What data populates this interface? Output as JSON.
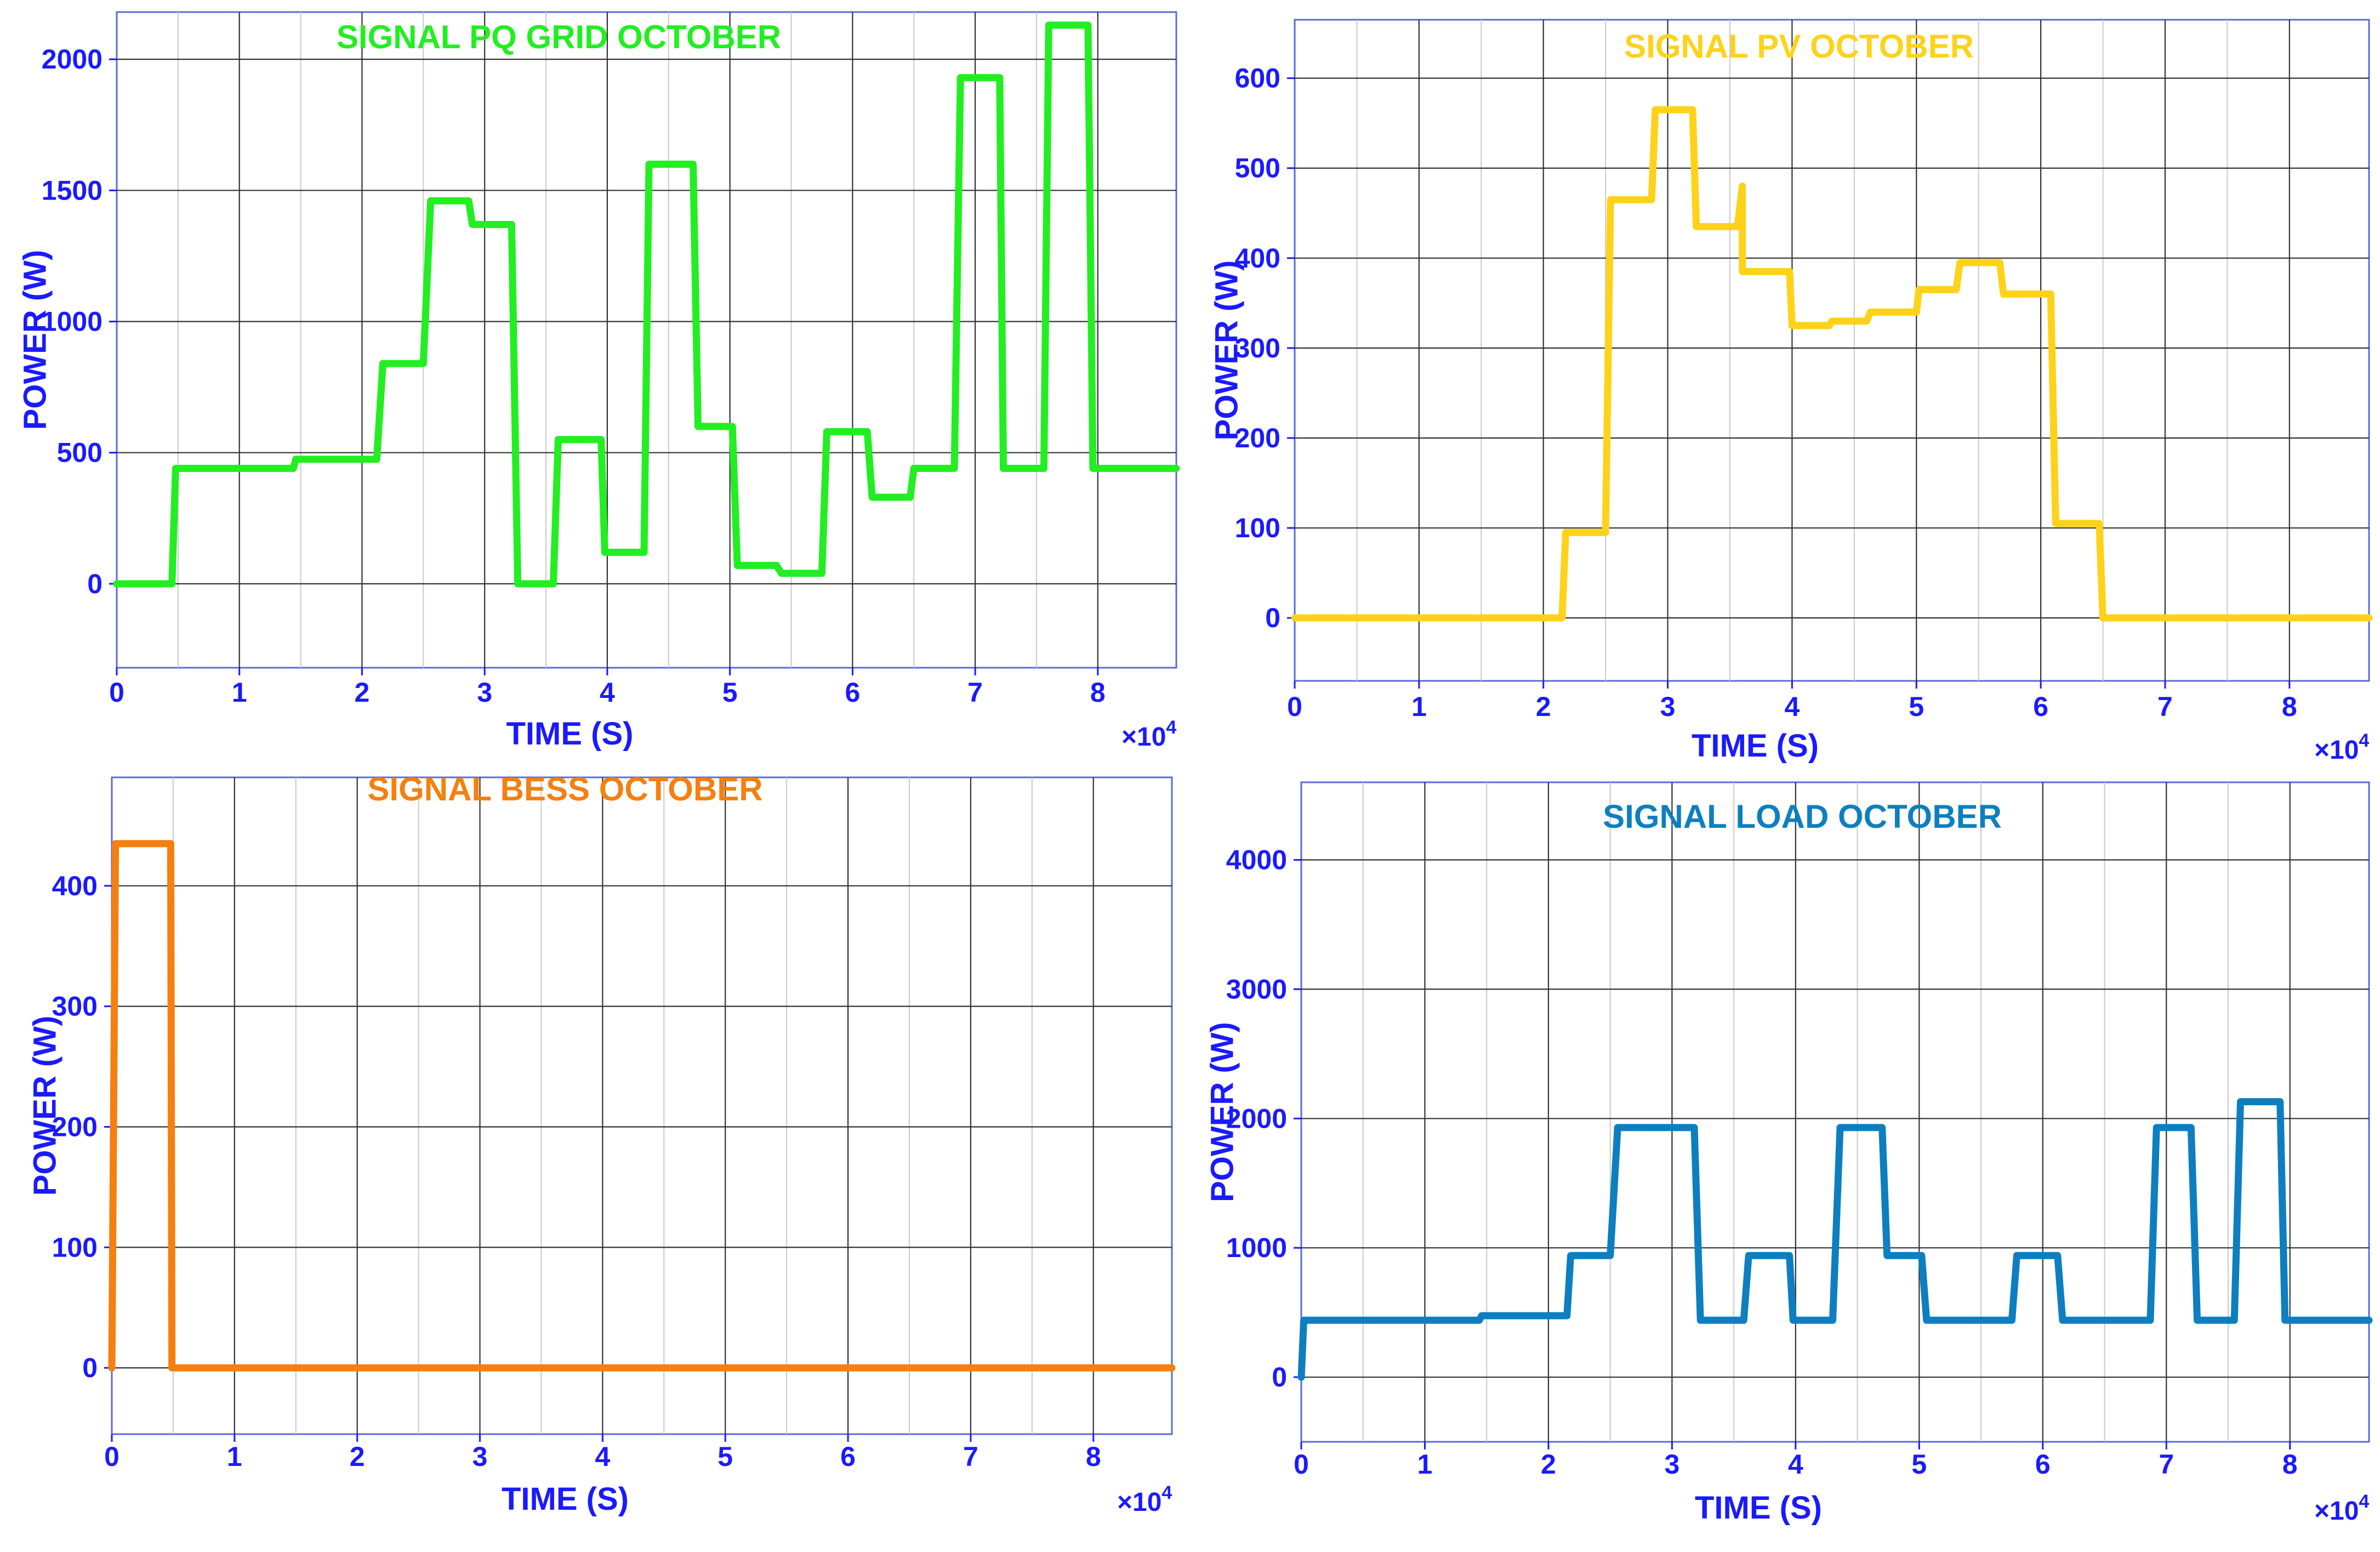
{
  "chart_data": [
    {
      "type": "line",
      "title": "SIGNAL PQ GRID OCTOBER",
      "xlabel": "TIME (S)",
      "ylabel": "POWER (W)",
      "x_exponent_label": "×10",
      "x_exponent_power": "4",
      "xlim": [
        0,
        8.64
      ],
      "ylim": [
        -320,
        2180
      ],
      "xticks": [
        0,
        1,
        2,
        3,
        4,
        5,
        6,
        7,
        8
      ],
      "yticks": [
        0,
        500,
        1000,
        1500,
        2000
      ],
      "x_tick_labels": [
        "0",
        "1",
        "2",
        "3",
        "4",
        "5",
        "6",
        "7",
        "8"
      ],
      "y_tick_labels": [
        "0",
        "500",
        "1000",
        "1500",
        "2000"
      ],
      "color": "#22ee22",
      "series": [
        {
          "x": [
            0,
            0.45,
            0.48,
            1.44,
            1.46,
            2.12,
            2.17,
            2.5,
            2.56,
            2.87,
            2.9,
            3.22,
            3.27,
            3.56,
            3.6,
            3.95,
            3.98,
            4.3,
            4.34,
            4.7,
            4.74,
            5.02,
            5.06,
            5.38,
            5.42,
            5.75,
            5.79,
            6.12,
            6.16,
            6.47,
            6.5,
            6.83,
            6.88,
            7.2,
            7.23,
            7.56,
            7.6,
            7.92,
            7.96,
            8.64
          ],
          "y": [
            0,
            0,
            440,
            440,
            475,
            475,
            840,
            840,
            1460,
            1460,
            1370,
            1370,
            0,
            0,
            550,
            550,
            120,
            120,
            1600,
            1600,
            600,
            600,
            70,
            70,
            40,
            40,
            580,
            580,
            330,
            330,
            440,
            440,
            1930,
            1930,
            440,
            440,
            2130,
            2130,
            440,
            440
          ]
        }
      ]
    },
    {
      "type": "line",
      "title": "SIGNAL PV OCTOBER",
      "xlabel": "TIME (S)",
      "ylabel": "POWER (W)",
      "x_exponent_label": "×10",
      "x_exponent_power": "4",
      "xlim": [
        0,
        8.64
      ],
      "ylim": [
        -70,
        665
      ],
      "xticks": [
        0,
        1,
        2,
        3,
        4,
        5,
        6,
        7,
        8
      ],
      "yticks": [
        0,
        100,
        200,
        300,
        400,
        500,
        600
      ],
      "x_tick_labels": [
        "0",
        "1",
        "2",
        "3",
        "4",
        "5",
        "6",
        "7",
        "8"
      ],
      "y_tick_labels": [
        "0",
        "100",
        "200",
        "300",
        "400",
        "500",
        "600"
      ],
      "color": "#ffd21a",
      "series": [
        {
          "x": [
            0,
            2.15,
            2.18,
            2.5,
            2.54,
            2.87,
            2.9,
            3.2,
            3.23,
            3.56,
            3.6,
            3.6,
            3.64,
            3.98,
            4.0,
            4.3,
            4.32,
            4.6,
            4.63,
            5.0,
            5.02,
            5.32,
            5.35,
            5.67,
            5.7,
            6.08,
            6.12,
            6.47,
            6.5,
            8.64
          ],
          "y": [
            0,
            0,
            95,
            95,
            465,
            465,
            565,
            565,
            435,
            435,
            480,
            385,
            385,
            385,
            325,
            325,
            330,
            330,
            340,
            340,
            365,
            365,
            395,
            395,
            360,
            360,
            105,
            105,
            0,
            0
          ]
        }
      ]
    },
    {
      "type": "line",
      "title": "SIGNAL BESS OCTOBER",
      "xlabel": "TIME (S)",
      "ylabel": "POWER (W)",
      "x_exponent_label": "×10",
      "x_exponent_power": "4",
      "xlim": [
        0,
        8.64
      ],
      "ylim": [
        -55,
        490
      ],
      "xticks": [
        0,
        1,
        2,
        3,
        4,
        5,
        6,
        7,
        8
      ],
      "yticks": [
        0,
        100,
        200,
        300,
        400
      ],
      "x_tick_labels": [
        "0",
        "1",
        "2",
        "3",
        "4",
        "5",
        "6",
        "7",
        "8"
      ],
      "y_tick_labels": [
        "0",
        "100",
        "200",
        "300",
        "400"
      ],
      "color": "#f57f0f",
      "series": [
        {
          "x": [
            0,
            0.03,
            0.48,
            0.49,
            8.64
          ],
          "y": [
            0,
            435,
            435,
            0,
            0
          ]
        }
      ]
    },
    {
      "type": "line",
      "title": "SIGNAL LOAD OCTOBER",
      "xlabel": "TIME (S)",
      "ylabel": "POWER (W)",
      "x_exponent_label": "×10",
      "x_exponent_power": "4",
      "xlim": [
        0,
        8.64
      ],
      "ylim": [
        -500,
        4600
      ],
      "xticks": [
        0,
        1,
        2,
        3,
        4,
        5,
        6,
        7,
        8
      ],
      "yticks": [
        0,
        1000,
        2000,
        3000,
        4000
      ],
      "x_tick_labels": [
        "0",
        "1",
        "2",
        "3",
        "4",
        "5",
        "6",
        "7",
        "8"
      ],
      "y_tick_labels": [
        "0",
        "1000",
        "2000",
        "3000",
        "4000"
      ],
      "color": "#0d7fc0",
      "series": [
        {
          "x": [
            0,
            0.02,
            1.44,
            1.46,
            2.15,
            2.18,
            2.5,
            2.56,
            3.18,
            3.23,
            3.58,
            3.62,
            3.95,
            3.98,
            4.3,
            4.36,
            4.7,
            4.74,
            5.02,
            5.06,
            5.75,
            5.79,
            6.12,
            6.16,
            6.87,
            6.92,
            7.2,
            7.25,
            7.55,
            7.6,
            7.92,
            7.96,
            8.64
          ],
          "y": [
            0,
            440,
            440,
            475,
            475,
            940,
            940,
            1930,
            1930,
            440,
            440,
            940,
            940,
            440,
            440,
            1930,
            1930,
            940,
            940,
            440,
            440,
            940,
            940,
            440,
            440,
            1930,
            1930,
            440,
            440,
            2130,
            2130,
            440,
            440
          ]
        }
      ]
    }
  ]
}
